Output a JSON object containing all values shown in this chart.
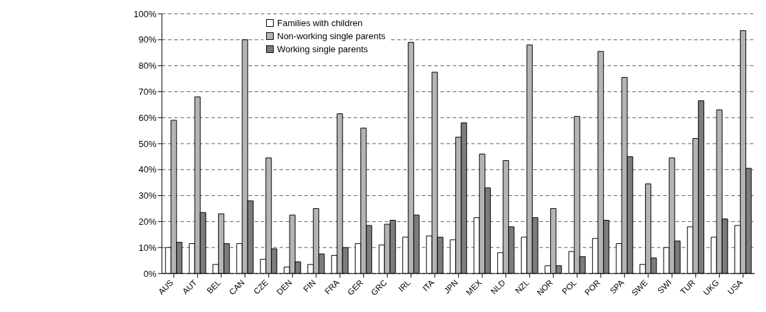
{
  "chart_data": {
    "type": "bar",
    "categories": [
      "AUS",
      "AUT",
      "BEL",
      "CAN",
      "CZE",
      "DEN",
      "FIN",
      "FRA",
      "GER",
      "GRC",
      "IRL",
      "ITA",
      "JPN",
      "MEX",
      "NLD",
      "NZL",
      "NOR",
      "POL",
      "POR",
      "SPA",
      "SWE",
      "SWI",
      "TUR",
      "UKG",
      "USA"
    ],
    "series": [
      {
        "name": "Families with children",
        "color": "#ffffff",
        "values": [
          10,
          11.5,
          3.5,
          11.5,
          5.5,
          2.5,
          3.5,
          7,
          11.5,
          11,
          14,
          14.5,
          13,
          21.5,
          8,
          14,
          3,
          8.5,
          13.5,
          11.5,
          3.5,
          10,
          18,
          14,
          18.5
        ]
      },
      {
        "name": "Non-working single parents",
        "color": "#b4b4b4",
        "values": [
          59,
          68,
          23,
          90,
          44.5,
          22.5,
          25,
          61.5,
          56,
          19,
          89,
          77.5,
          52.5,
          46,
          43.5,
          88,
          25,
          60.5,
          85.5,
          75.5,
          34.5,
          44.5,
          52,
          63,
          93.5
        ]
      },
      {
        "name": "Working single parents",
        "color": "#7c7c7c",
        "values": [
          12,
          23.5,
          11.5,
          28,
          9.5,
          4.5,
          7.5,
          10,
          18.5,
          20.5,
          22.5,
          14,
          58,
          33,
          18,
          21.5,
          3,
          6.5,
          20.5,
          45,
          6,
          12.5,
          66.5,
          21,
          40.5
        ]
      }
    ],
    "ylim": [
      0,
      100
    ],
    "yticks": [
      {
        "value": 0,
        "label": "0%"
      },
      {
        "value": 10,
        "label": "10%"
      },
      {
        "value": 20,
        "label": "20%"
      },
      {
        "value": 30,
        "label": "30%"
      },
      {
        "value": 40,
        "label": "40%"
      },
      {
        "value": 50,
        "label": "50%"
      },
      {
        "value": 60,
        "label": "60%"
      },
      {
        "value": 70,
        "label": "70%"
      },
      {
        "value": 80,
        "label": "80%"
      },
      {
        "value": 90,
        "label": "90%"
      },
      {
        "value": 100,
        "label": "100%"
      }
    ],
    "grid": "y",
    "legend": "top left"
  }
}
